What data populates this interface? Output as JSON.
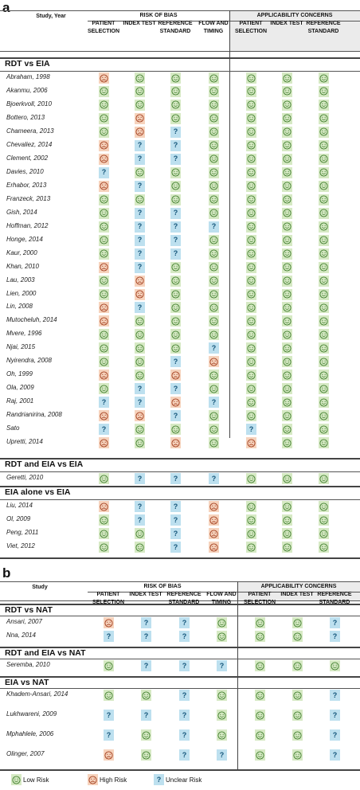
{
  "panels": [
    {
      "letter": "a",
      "study_header": "Study, Year",
      "groups": [
        "RISK OF BIAS",
        "APPLICABILITY CONCERNS"
      ],
      "columns": [
        "PATIENT SELECTION",
        "INDEX TEST",
        "REFERENCE STANDARD",
        "FLOW AND TIMING",
        "PATIENT SELECTION",
        "INDEX TEST",
        "REFERENCE STANDARD"
      ],
      "sections": [
        {
          "title": "RDT vs EIA",
          "rows": [
            {
              "study": "Abraham, 1998",
              "r": [
                "H",
                "L",
                "L",
                "L",
                "L",
                "L",
                "L"
              ]
            },
            {
              "study": "Akanmu, 2006",
              "r": [
                "L",
                "L",
                "L",
                "L",
                "L",
                "L",
                "L"
              ]
            },
            {
              "study": "Bjoerkvoll, 2010",
              "r": [
                "L",
                "L",
                "L",
                "L",
                "L",
                "L",
                "L"
              ]
            },
            {
              "study": "Bottero, 2013",
              "r": [
                "L",
                "H",
                "L",
                "L",
                "L",
                "L",
                "L"
              ]
            },
            {
              "study": "Chameera, 2013",
              "r": [
                "L",
                "H",
                "U",
                "L",
                "L",
                "L",
                "L"
              ]
            },
            {
              "study": "Chevaliez, 2014",
              "r": [
                "H",
                "U",
                "U",
                "L",
                "L",
                "L",
                "L"
              ]
            },
            {
              "study": "Clement, 2002",
              "r": [
                "H",
                "U",
                "U",
                "L",
                "L",
                "L",
                "L"
              ]
            },
            {
              "study": "Davies, 2010",
              "r": [
                "U",
                "L",
                "L",
                "L",
                "L",
                "L",
                "L"
              ]
            },
            {
              "study": "Erhabor, 2013",
              "r": [
                "H",
                "U",
                "L",
                "L",
                "L",
                "L",
                "L"
              ]
            },
            {
              "study": "Franzeck, 2013",
              "r": [
                "L",
                "L",
                "L",
                "L",
                "L",
                "L",
                "L"
              ]
            },
            {
              "study": "Gish, 2014",
              "r": [
                "L",
                "U",
                "U",
                "L",
                "L",
                "L",
                "L"
              ]
            },
            {
              "study": "Hoffman, 2012",
              "r": [
                "L",
                "U",
                "U",
                "U",
                "L",
                "L",
                "L"
              ]
            },
            {
              "study": "Honge, 2014",
              "r": [
                "L",
                "U",
                "U",
                "L",
                "L",
                "L",
                "L"
              ]
            },
            {
              "study": "Kaur, 2000",
              "r": [
                "L",
                "U",
                "U",
                "L",
                "L",
                "L",
                "L"
              ]
            },
            {
              "study": "Khan, 2010",
              "r": [
                "H",
                "U",
                "L",
                "L",
                "L",
                "L",
                "L"
              ]
            },
            {
              "study": "Lau, 2003",
              "r": [
                "L",
                "H",
                "L",
                "L",
                "L",
                "L",
                "L"
              ]
            },
            {
              "study": "Lien, 2000",
              "r": [
                "L",
                "H",
                "L",
                "L",
                "L",
                "L",
                "L"
              ]
            },
            {
              "study": "Lin, 2008",
              "r": [
                "H",
                "U",
                "L",
                "L",
                "L",
                "L",
                "L"
              ]
            },
            {
              "study": "Mutocheluh, 2014",
              "r": [
                "H",
                "L",
                "L",
                "L",
                "L",
                "L",
                "L"
              ]
            },
            {
              "study": "Mvere, 1996",
              "r": [
                "L",
                "L",
                "L",
                "L",
                "L",
                "L",
                "L"
              ]
            },
            {
              "study": "Njai, 2015",
              "r": [
                "L",
                "L",
                "L",
                "U",
                "L",
                "L",
                "L"
              ]
            },
            {
              "study": "Nyirendra, 2008",
              "r": [
                "L",
                "L",
                "U",
                "H",
                "L",
                "L",
                "L"
              ]
            },
            {
              "study": "Oh, 1999",
              "r": [
                "H",
                "L",
                "H",
                "L",
                "L",
                "L",
                "L"
              ]
            },
            {
              "study": "Ola, 2009",
              "r": [
                "L",
                "U",
                "U",
                "L",
                "L",
                "L",
                "L"
              ]
            },
            {
              "study": "Raj, 2001",
              "r": [
                "U",
                "U",
                "H",
                "U",
                "L",
                "L",
                "L"
              ]
            },
            {
              "study": "Randrianirina, 2008",
              "r": [
                "H",
                "H",
                "U",
                "L",
                "L",
                "L",
                "L"
              ]
            },
            {
              "study": "Sato",
              "r": [
                "U",
                "L",
                "L",
                "L",
                "U",
                "L",
                "L"
              ]
            },
            {
              "study": "Upretti, 2014",
              "r": [
                "H",
                "L",
                "H",
                "L",
                "H",
                "L",
                "L"
              ]
            }
          ]
        },
        {
          "title": "RDT and EIA vs EIA",
          "rows": [
            {
              "study": "Geretti, 2010",
              "r": [
                "L",
                "U",
                "U",
                "U",
                "L",
                "L",
                "L"
              ]
            }
          ]
        },
        {
          "title": "EIA alone vs EIA",
          "rows": [
            {
              "study": "Liu, 2014",
              "r": [
                "H",
                "U",
                "U",
                "H",
                "L",
                "L",
                "L"
              ]
            },
            {
              "study": "Ol, 2009",
              "r": [
                "L",
                "U",
                "U",
                "H",
                "L",
                "L",
                "L"
              ]
            },
            {
              "study": "Peng, 2011",
              "r": [
                "L",
                "L",
                "U",
                "H",
                "L",
                "L",
                "L"
              ]
            },
            {
              "study": "Viet, 2012",
              "r": [
                "L",
                "L",
                "U",
                "H",
                "L",
                "L",
                "L"
              ]
            }
          ]
        }
      ]
    },
    {
      "letter": "b",
      "study_header": "Study",
      "groups": [
        "RISK OF BIAS",
        "APPLICABILITY CONCERNS"
      ],
      "columns": [
        "PATIENT SELECTION",
        "INDEX TEST",
        "REFERENCE STANDARD",
        "FLOW AND TIMING",
        "PATIENT SELECTION",
        "INDEX TEST",
        "REFERENCE STANDARD"
      ],
      "sections": [
        {
          "title": "RDT vs NAT",
          "rows": [
            {
              "study": "Ansari, 2007",
              "r": [
                "H",
                "U",
                "U",
                "L",
                "L",
                "L",
                "U"
              ]
            },
            {
              "study": "Nna, 2014",
              "r": [
                "U",
                "U",
                "U",
                "L",
                "L",
                "L",
                "U"
              ]
            }
          ]
        },
        {
          "title": "RDT and EIA vs NAT",
          "rows": [
            {
              "study": "Seremba, 2010",
              "r": [
                "L",
                "U",
                "U",
                "U",
                "L",
                "L",
                "L"
              ]
            }
          ]
        },
        {
          "title": "EIA vs NAT",
          "rows": [
            {
              "study": "Khadem-Ansari, 2014",
              "r": [
                "L",
                "L",
                "U",
                "L",
                "L",
                "L",
                "U"
              ]
            },
            {
              "study": "Lukhwareni, 2009",
              "r": [
                "U",
                "U",
                "U",
                "L",
                "L",
                "L",
                "U"
              ]
            },
            {
              "study": "Mphahlele, 2006",
              "r": [
                "U",
                "L",
                "U",
                "L",
                "L",
                "L",
                "U"
              ]
            },
            {
              "study": "Olinger, 2007",
              "r": [
                "H",
                "L",
                "U",
                "U",
                "L",
                "L",
                "U"
              ]
            }
          ]
        }
      ]
    }
  ],
  "legend": [
    {
      "code": "L",
      "label": "Low Risk"
    },
    {
      "code": "H",
      "label": "High Risk"
    },
    {
      "code": "U",
      "label": "Unclear Risk"
    }
  ],
  "colors": {
    "low": "#d6e9c4",
    "high": "#f6d3bd",
    "unclear": "#bde0ef",
    "low_icon": "#3e7d2a",
    "high_icon": "#a13a19",
    "unclear_icon": "#14557a"
  }
}
